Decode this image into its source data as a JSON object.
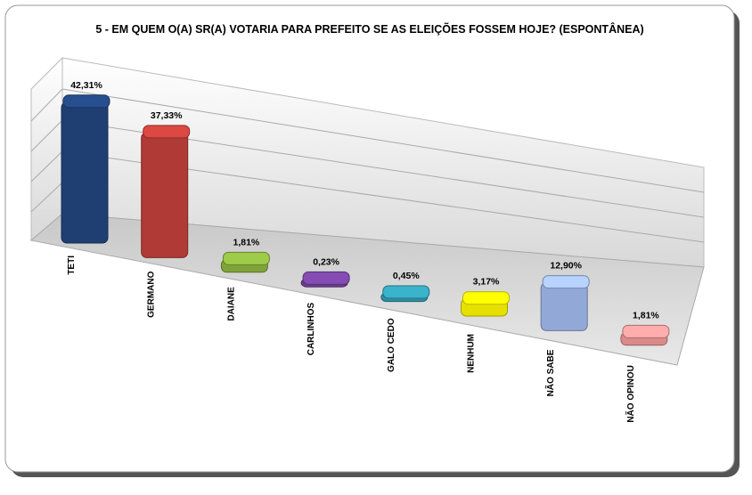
{
  "chart_data": {
    "type": "bar",
    "title": "5 -  EM QUEM O(A) SR(A) VOTARIA PARA PREFEITO SE AS ELEIÇÕES FOSSEM HOJE? (ESPONTÂNEA)",
    "categories": [
      "TETI",
      "GERMANO",
      "DAIANE",
      "CARLINHOS",
      "GALO CEDO",
      "NENHUM",
      "NÃO SABE",
      "NÃO OPINOU"
    ],
    "values": [
      42.31,
      37.33,
      1.81,
      0.23,
      0.45,
      3.17,
      12.9,
      1.81
    ],
    "value_labels": [
      "42,31%",
      "37,33%",
      "1,81%",
      "0,23%",
      "0,45%",
      "3,17%",
      "12,90%",
      "1,81%"
    ],
    "colors": [
      "#1f3f73",
      "#b03a35",
      "#7ea33a",
      "#6a3d8f",
      "#2e8fa3",
      "#e6e000",
      "#92a9d8",
      "#d98a8a"
    ]
  }
}
